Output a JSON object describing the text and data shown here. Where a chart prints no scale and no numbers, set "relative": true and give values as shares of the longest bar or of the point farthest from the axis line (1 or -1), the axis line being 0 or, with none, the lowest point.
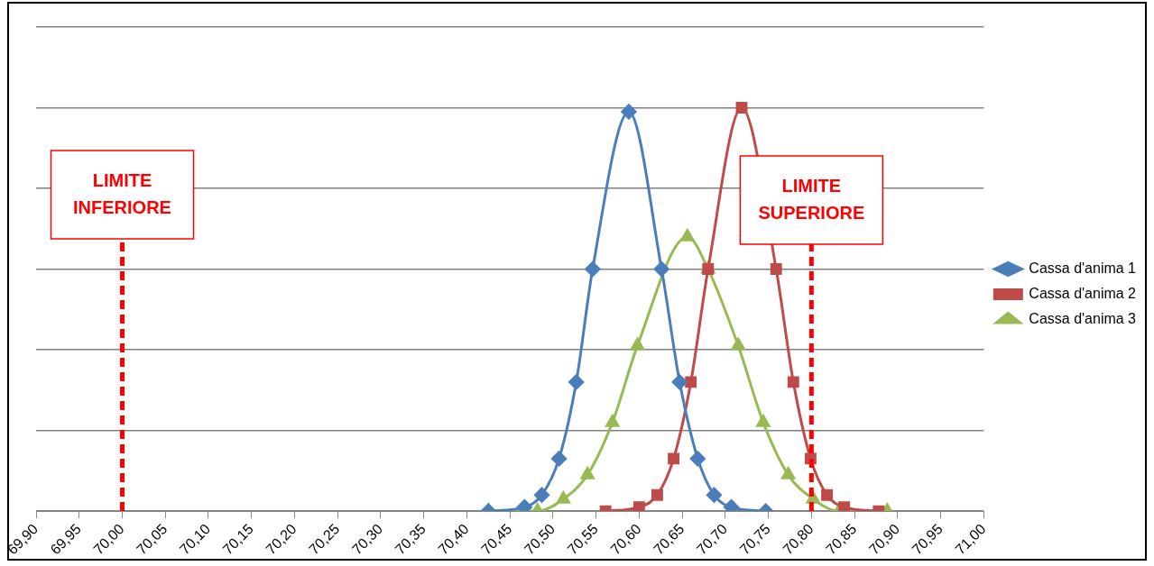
{
  "chart_data": {
    "type": "line",
    "relative": true,
    "grid": "y",
    "legend": "right",
    "xlim": [
      69.9,
      71.0
    ],
    "xticks": [
      {
        "value": 69.9,
        "label": "69,90"
      },
      {
        "value": 69.95,
        "label": "69,95"
      },
      {
        "value": 70.0,
        "label": "70,00"
      },
      {
        "value": 70.05,
        "label": "70,05"
      },
      {
        "value": 70.1,
        "label": "70,10"
      },
      {
        "value": 70.15,
        "label": "70,15"
      },
      {
        "value": 70.2,
        "label": "70,20"
      },
      {
        "value": 70.25,
        "label": "70,25"
      },
      {
        "value": 70.3,
        "label": "70,30"
      },
      {
        "value": 70.35,
        "label": "70,35"
      },
      {
        "value": 70.4,
        "label": "70,40"
      },
      {
        "value": 70.45,
        "label": "70,45"
      },
      {
        "value": 70.5,
        "label": "70,50"
      },
      {
        "value": 70.55,
        "label": "70,55"
      },
      {
        "value": 70.6,
        "label": "70,60"
      },
      {
        "value": 70.65,
        "label": "70,65"
      },
      {
        "value": 70.7,
        "label": "70,70"
      },
      {
        "value": 70.75,
        "label": "70,75"
      },
      {
        "value": 70.8,
        "label": "70,80"
      },
      {
        "value": 70.85,
        "label": "70,85"
      },
      {
        "value": 70.9,
        "label": "70,90"
      },
      {
        "value": 70.95,
        "label": "70,95"
      },
      {
        "value": 71.0,
        "label": "71,00"
      }
    ],
    "series": [
      {
        "name": "Cassa d'anima 1",
        "color": "#4a7ebb",
        "marker": "diamond",
        "x": [
          70.425,
          70.467,
          70.487,
          70.507,
          70.527,
          70.546,
          70.588,
          70.626,
          70.647,
          70.668,
          70.687,
          70.707,
          70.747
        ],
        "values": [
          0,
          0.01,
          0.04,
          0.13,
          0.32,
          0.6,
          0.99,
          0.6,
          0.32,
          0.13,
          0.04,
          0.01,
          0
        ]
      },
      {
        "name": "Cassa d'anima 2",
        "color": "#be4b48",
        "marker": "square",
        "x": [
          70.561,
          70.6,
          70.621,
          70.64,
          70.66,
          70.68,
          70.719,
          70.759,
          70.779,
          70.799,
          70.818,
          70.838,
          70.878
        ],
        "values": [
          0,
          0.01,
          0.04,
          0.13,
          0.32,
          0.6,
          1,
          0.6,
          0.32,
          0.13,
          0.04,
          0.01,
          0
        ]
      },
      {
        "name": "Cassa d'anima 3",
        "color": "#98b954",
        "marker": "triangle",
        "x": [
          70.425,
          70.482,
          70.512,
          70.54,
          70.569,
          70.598,
          70.656,
          70.68,
          70.715,
          70.744,
          70.773,
          70.802,
          70.832,
          70.888
        ],
        "values": [
          0,
          0,
          0.03,
          0.09,
          0.22,
          0.41,
          0.68,
          0.6,
          0.41,
          0.22,
          0.09,
          0.03,
          0,
          0
        ]
      }
    ],
    "ref_lines": [
      {
        "axis": "x",
        "value": 70.0,
        "label": "LIMITE INFERIORE",
        "color": "#ff0000",
        "line_style": "dashed"
      },
      {
        "axis": "x",
        "value": 70.8,
        "label": "LIMITE SUPERIORE",
        "color": "#ff0000",
        "line_style": "dashed"
      }
    ]
  }
}
